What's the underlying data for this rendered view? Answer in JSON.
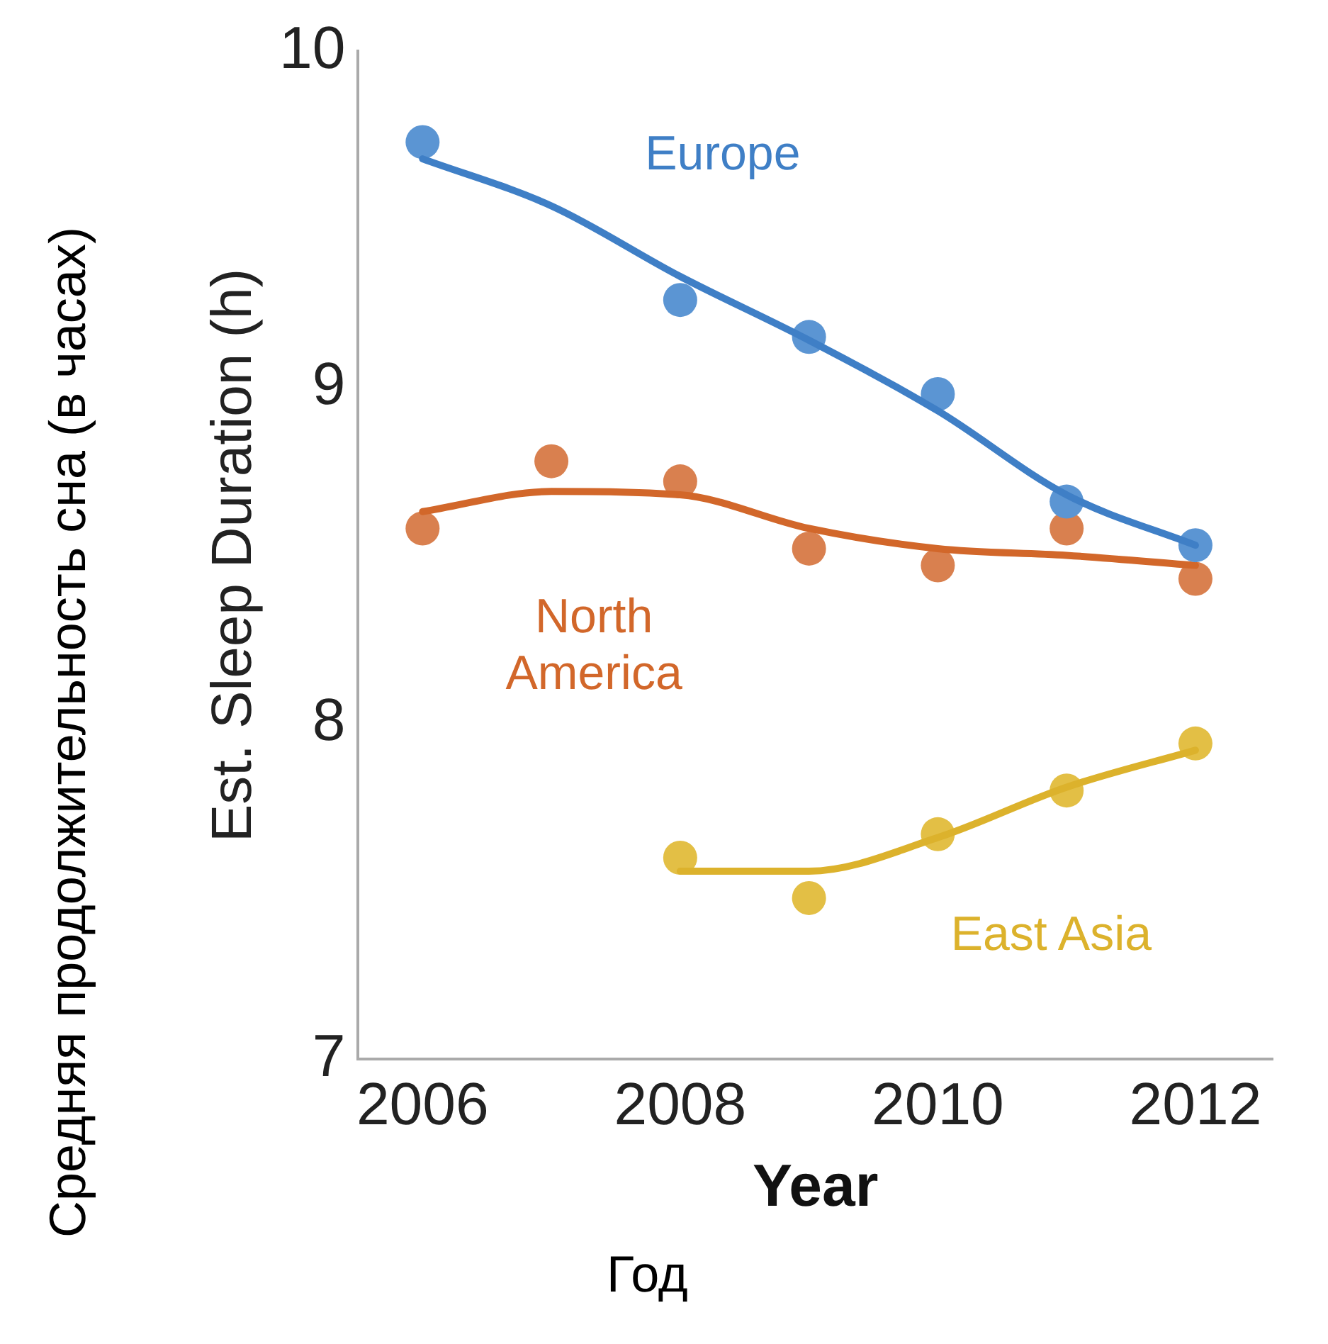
{
  "chart_data": {
    "type": "line",
    "xlabel": "Year",
    "ylabel": "Est. Sleep Duration (h)",
    "annotations": [
      "Средняя продолжительность сна (в часах)",
      "Год"
    ],
    "xlim": [
      2005.5,
      2012.6
    ],
    "xticks": [
      2006,
      2008,
      2010,
      2012
    ],
    "ylim": [
      7,
      10
    ],
    "yticks": [
      7,
      8,
      9,
      10
    ],
    "grid": false,
    "legend": false,
    "series": [
      {
        "name": "Europe",
        "type": "line",
        "marker": "none",
        "color": "#3f7fc6",
        "x": [
          2006,
          2007,
          2008,
          2009,
          2010,
          2011,
          2012
        ],
        "values": [
          9.68,
          9.54,
          9.33,
          9.14,
          8.93,
          8.68,
          8.53
        ]
      },
      {
        "type": "scatter",
        "marker": "circle",
        "color": "#5b95d3",
        "x": [
          2006,
          2008,
          2009,
          2010,
          2011,
          2012
        ],
        "values": [
          9.73,
          9.26,
          9.15,
          8.98,
          8.66,
          8.53
        ]
      },
      {
        "name": "North America",
        "type": "line",
        "marker": "none",
        "color": "#d2672a",
        "x": [
          2006,
          2007,
          2008,
          2009,
          2010,
          2011,
          2012
        ],
        "values": [
          8.63,
          8.69,
          8.68,
          8.58,
          8.52,
          8.5,
          8.47
        ]
      },
      {
        "type": "scatter",
        "marker": "circle",
        "color": "#d9804f",
        "x": [
          2006,
          2007,
          2008,
          2009,
          2010,
          2011,
          2012
        ],
        "values": [
          8.58,
          8.78,
          8.72,
          8.52,
          8.47,
          8.58,
          8.43
        ]
      },
      {
        "name": "East Asia",
        "type": "line",
        "marker": "none",
        "color": "#dcb22c",
        "x": [
          2008,
          2009,
          2010,
          2011,
          2012
        ],
        "values": [
          7.56,
          7.56,
          7.66,
          7.81,
          7.92
        ]
      },
      {
        "type": "scatter",
        "marker": "circle",
        "color": "#e3bf45",
        "x": [
          2008,
          2009,
          2010,
          2011,
          2012
        ],
        "values": [
          7.6,
          7.48,
          7.67,
          7.8,
          7.94
        ]
      }
    ]
  }
}
